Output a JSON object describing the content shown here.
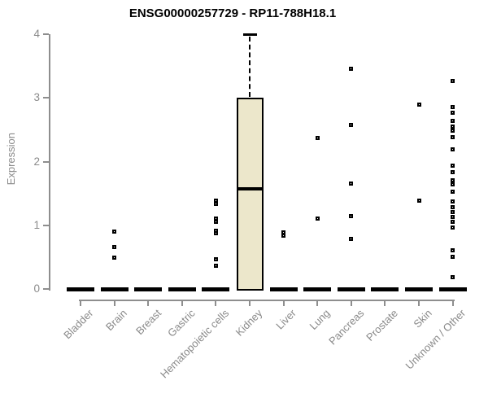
{
  "chart_data": {
    "type": "boxplot",
    "title": "ENSG00000257729 - RP11-788H18.1",
    "ylabel": "Expression",
    "xlabel": "",
    "ylim": [
      0,
      4
    ],
    "yticks": [
      0,
      1,
      2,
      3,
      4
    ],
    "grid": false,
    "legend": "none",
    "categories": [
      "Bladder",
      "Brain",
      "Breast",
      "Gastric",
      "Hematopoietic cells",
      "Kidney",
      "Liver",
      "Lung",
      "Pancreas",
      "Prostate",
      "Skin",
      "Unknown / Other"
    ],
    "boxes": [
      {
        "category": "Bladder",
        "q1": 0,
        "median": 0,
        "q3": 0,
        "whisker_low": 0,
        "whisker_high": 0
      },
      {
        "category": "Brain",
        "q1": 0,
        "median": 0,
        "q3": 0,
        "whisker_low": 0,
        "whisker_high": 0
      },
      {
        "category": "Breast",
        "q1": 0,
        "median": 0,
        "q3": 0,
        "whisker_low": 0,
        "whisker_high": 0
      },
      {
        "category": "Gastric",
        "q1": 0,
        "median": 0,
        "q3": 0,
        "whisker_low": 0,
        "whisker_high": 0
      },
      {
        "category": "Hematopoietic cells",
        "q1": 0,
        "median": 0,
        "q3": 0,
        "whisker_low": 0,
        "whisker_high": 0
      },
      {
        "category": "Kidney",
        "q1": 0,
        "median": 1.57,
        "q3": 3.0,
        "whisker_low": 0,
        "whisker_high": 4.0
      },
      {
        "category": "Liver",
        "q1": 0,
        "median": 0,
        "q3": 0,
        "whisker_low": 0,
        "whisker_high": 0
      },
      {
        "category": "Lung",
        "q1": 0,
        "median": 0,
        "q3": 0,
        "whisker_low": 0,
        "whisker_high": 0
      },
      {
        "category": "Pancreas",
        "q1": 0,
        "median": 0,
        "q3": 0,
        "whisker_low": 0,
        "whisker_high": 0
      },
      {
        "category": "Prostate",
        "q1": 0,
        "median": 0,
        "q3": 0,
        "whisker_low": 0,
        "whisker_high": 0
      },
      {
        "category": "Skin",
        "q1": 0,
        "median": 0,
        "q3": 0,
        "whisker_low": 0,
        "whisker_high": 0
      },
      {
        "category": "Unknown / Other",
        "q1": 0,
        "median": 0,
        "q3": 0,
        "whisker_low": 0,
        "whisker_high": 0
      }
    ],
    "outlier_points": [
      [],
      [
        0.9,
        0.66,
        0.49
      ],
      [],
      [],
      [
        1.39,
        1.34,
        1.1,
        1.05,
        0.92,
        0.87,
        0.47,
        0.37
      ],
      [],
      [
        0.89,
        0.84
      ],
      [
        2.37,
        1.1
      ],
      [
        3.46,
        2.57,
        1.65,
        1.14,
        0.78
      ],
      [],
      [
        2.9,
        1.39
      ],
      [
        3.26,
        2.85,
        2.77,
        2.64,
        2.55,
        2.48,
        2.38,
        2.19,
        1.93,
        1.83,
        1.71,
        1.64,
        1.53,
        1.38,
        1.29,
        1.21,
        1.13,
        1.05,
        0.96,
        0.61,
        0.5,
        0.19
      ]
    ],
    "colors": {
      "box_fill": "#ECE7CB",
      "box_border": "#000000",
      "axis": "#8e8e8e",
      "tick_label": "#8a8a8a",
      "title": "#000000"
    }
  }
}
